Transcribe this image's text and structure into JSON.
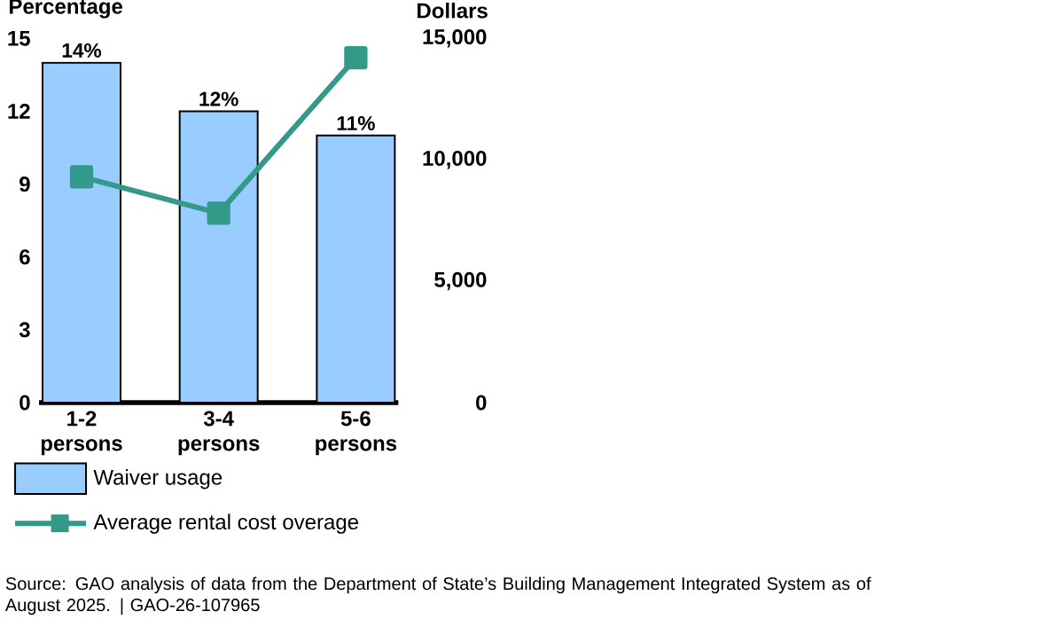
{
  "chart_data": {
    "type": "bar",
    "ylabel": "Percentage",
    "y2label": "Dollars",
    "categories": [
      "1-2 persons",
      "3-4 persons",
      "5-6 persons"
    ],
    "ylim": [
      0,
      15
    ],
    "yticks": [
      0,
      3,
      6,
      9,
      12,
      15
    ],
    "y2lim": [
      0,
      15000
    ],
    "y2ticks": [
      {
        "value": 0,
        "label": "0"
      },
      {
        "value": 5000,
        "label": "5,000"
      },
      {
        "value": 10000,
        "label": "10,000"
      },
      {
        "value": 15000,
        "label": "15,000"
      }
    ],
    "legend": "bottom",
    "series": [
      {
        "name": "Waiver usage",
        "color": "#99ccff",
        "values": [
          14,
          12,
          11
        ],
        "value_labels": [
          "14%",
          "12%",
          "11%"
        ]
      },
      {
        "name": "Average rental cost overage",
        "type": "line",
        "axis": "y2",
        "marker": "square",
        "color": "#339988",
        "values": [
          9300,
          7800,
          14200
        ]
      }
    ],
    "annotations": [
      "Source: GAO analysis of data from the Department of State’s Building Management Integrated System as of August 2025.  |  GAO-26-107965"
    ]
  }
}
